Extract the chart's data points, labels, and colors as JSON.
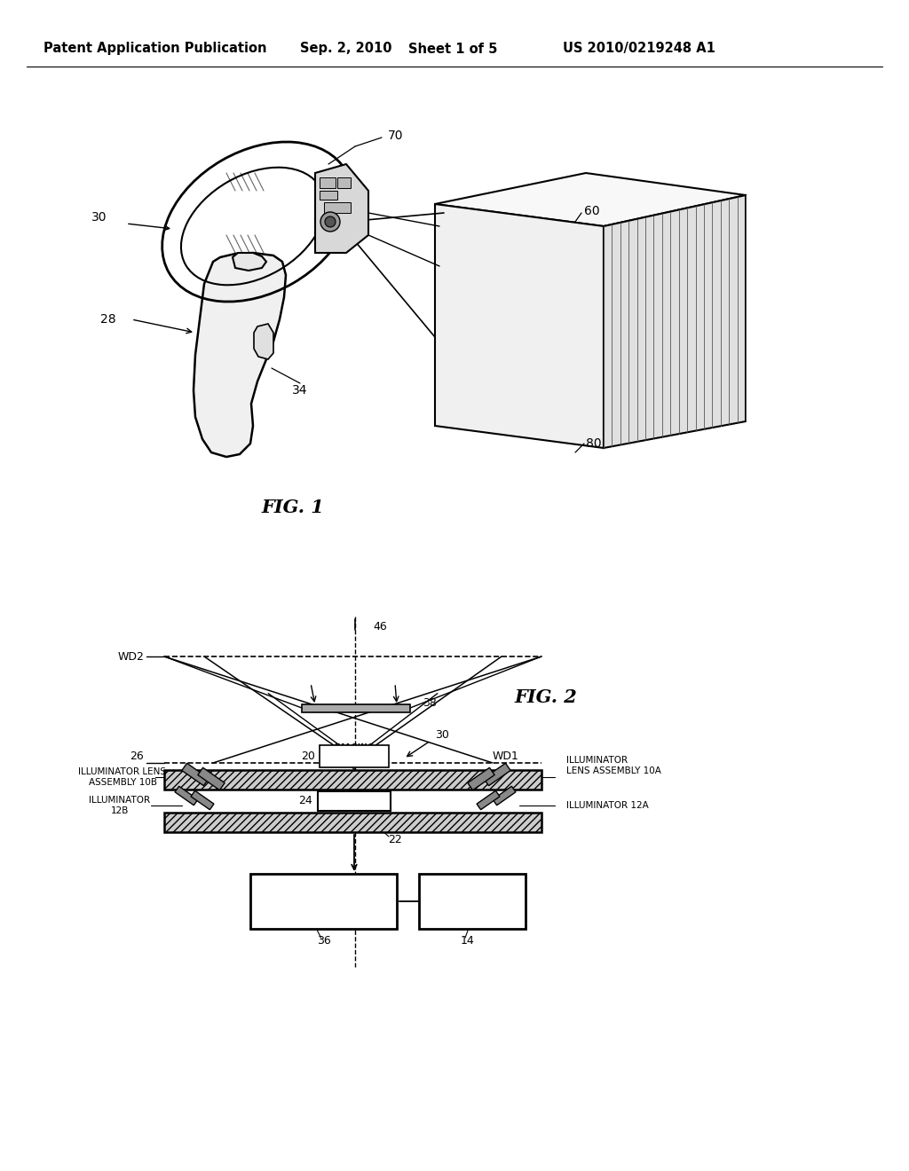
{
  "background_color": "#ffffff",
  "header_text": "Patent Application Publication",
  "header_date": "Sep. 2, 2010",
  "header_sheet": "Sheet 1 of 5",
  "header_patent": "US 2010/0219248 A1",
  "fig1_label": "FIG. 1",
  "fig2_label": "FIG. 2",
  "line_color": "#000000",
  "text_color": "#000000",
  "font_size_header": 10.5,
  "font_size_labels": 9,
  "font_size_fig": 15
}
